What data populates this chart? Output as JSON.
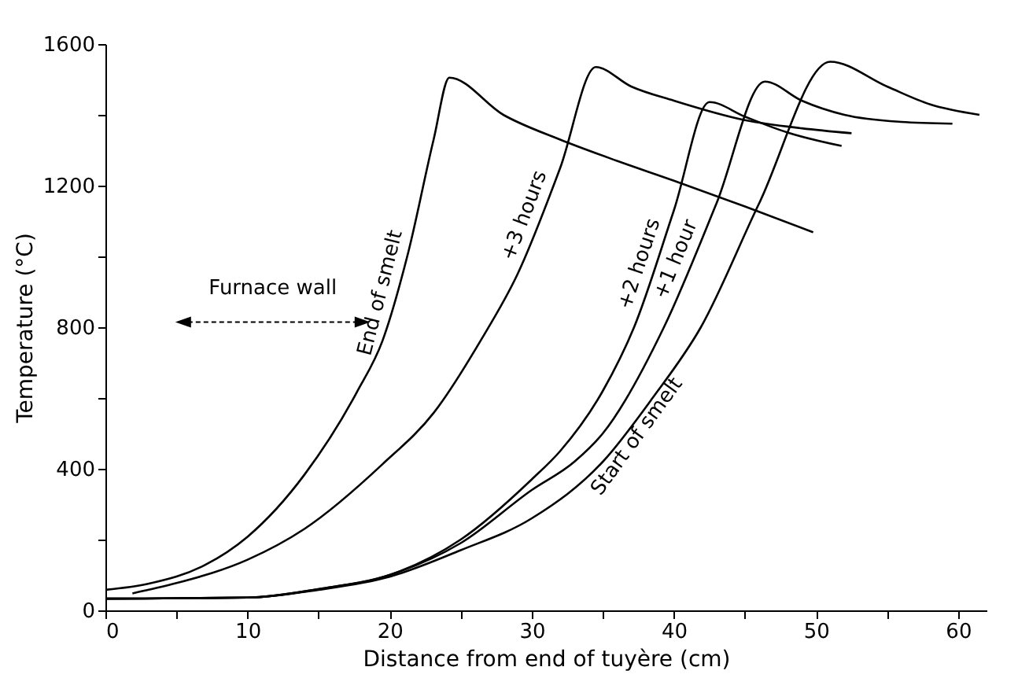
{
  "chart_data": {
    "type": "line",
    "xlabel": "Distance from end of tuyère (cm)",
    "ylabel": "Temperature (°C)",
    "xlim": [
      0,
      62
    ],
    "xticks": [
      0,
      {
        "value": 5,
        "label": null
      },
      10,
      {
        "value": 15,
        "label": null
      },
      20,
      {
        "value": 25,
        "label": null
      },
      30,
      {
        "value": 35,
        "label": null
      },
      40,
      {
        "value": 45,
        "label": null
      },
      50,
      {
        "value": 55,
        "label": null
      },
      60
    ],
    "ylim": [
      0,
      1600
    ],
    "yticks": [
      0,
      {
        "value": 200,
        "label": null
      },
      400,
      {
        "value": 600,
        "label": null
      },
      800,
      {
        "value": 1000,
        "label": null
      },
      1200,
      {
        "value": 1400,
        "label": null
      },
      1600
    ],
    "grid": false,
    "legend": false,
    "marker": "none",
    "line_style": "solid",
    "annotations": [
      "Furnace wall"
    ],
    "series": [
      {
        "name": "End of smelt",
        "color": "#000000",
        "x": [
          0,
          3,
          7,
          10,
          14,
          17.7,
          19.5,
          21.3,
          23.1,
          24.2,
          28,
          32,
          36,
          40,
          45,
          49.8
        ],
        "values": [
          58,
          75,
          128,
          208,
          383,
          617,
          762,
          1010,
          1331,
          1505,
          1400,
          1330,
          1270,
          1214,
          1141,
          1068
        ]
      },
      {
        "name": "+3 hours",
        "color": "#000000",
        "x": [
          1.9,
          5,
          10,
          14,
          19.5,
          23.1,
          26.4,
          29,
          32,
          34.5,
          37,
          40,
          45,
          49,
          52.5
        ],
        "values": [
          48,
          77,
          143,
          230,
          413,
          558,
          762,
          950,
          1250,
          1535,
          1480,
          1440,
          1385,
          1362,
          1348
        ]
      },
      {
        "name": "+2 hours",
        "color": "#000000",
        "x": [
          0,
          10,
          15,
          20,
          25,
          30,
          32,
          35,
          37.2,
          40,
          42.5,
          45,
          48,
          51.8
        ],
        "values": [
          33,
          36,
          60,
          100,
          200,
          370,
          450,
          620,
          800,
          1130,
          1436,
          1395,
          1350,
          1312
        ]
      },
      {
        "name": "+1 hour",
        "color": "#000000",
        "x": [
          0,
          10,
          15,
          20,
          25,
          30,
          33,
          35,
          39.3,
          43,
          46.4,
          49,
          52,
          56,
          59.6
        ],
        "values": [
          33,
          36,
          60,
          100,
          190,
          340,
          420,
          500,
          800,
          1150,
          1494,
          1440,
          1400,
          1380,
          1375
        ]
      },
      {
        "name": "Start of smelt",
        "color": "#000000",
        "x": [
          0,
          10,
          15,
          20,
          25,
          30,
          35,
          38.5,
          41.9,
          46,
          51,
          55,
          58,
          61.5
        ],
        "values": [
          33,
          36,
          58,
          95,
          170,
          260,
          420,
          600,
          800,
          1150,
          1550,
          1480,
          1430,
          1400
        ]
      }
    ]
  }
}
